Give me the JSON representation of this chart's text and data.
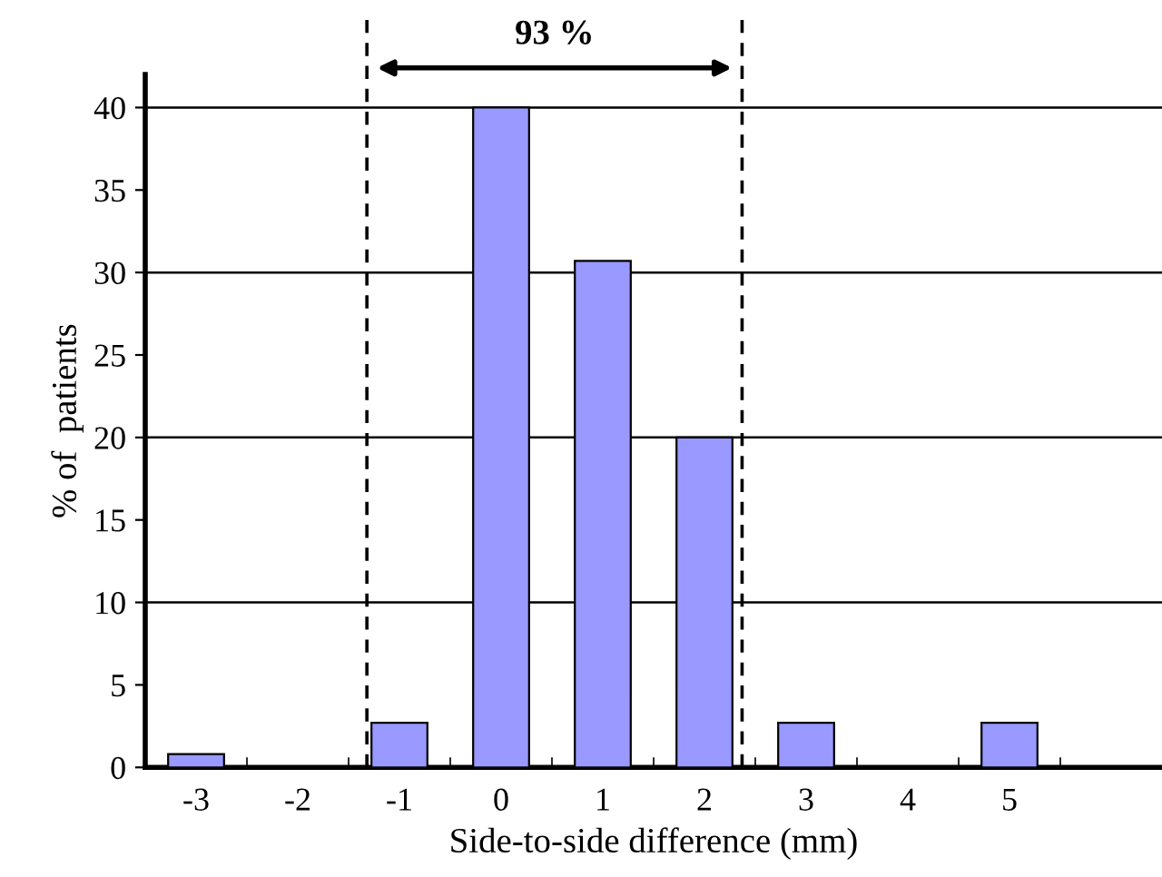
{
  "chart_data": {
    "type": "bar",
    "xlabel": "Side-to-side difference (mm)",
    "ylabel": "% of  patients",
    "x": [
      -3,
      -2,
      -1,
      0,
      1,
      2,
      3,
      4,
      5
    ],
    "values": [
      0.8,
      null,
      2.7,
      40,
      30.7,
      20,
      2.7,
      null,
      2.7
    ],
    "color": "#9999ff",
    "xlim": [
      -3.5,
      6.5
    ],
    "xticks": [
      -3,
      -2,
      -1,
      0,
      1,
      2,
      3,
      4,
      5
    ],
    "ylim": [
      0,
      42
    ],
    "yticks": [
      0,
      5,
      10,
      15,
      20,
      25,
      30,
      35,
      40
    ],
    "grid": false,
    "ref_lines": [
      {
        "axis": "x",
        "value": -1.32,
        "line_style": "dashed",
        "color": "#000000"
      },
      {
        "axis": "x",
        "value": 2.37,
        "line_style": "dashed",
        "color": "#000000"
      },
      {
        "axis": "y",
        "value": 10,
        "color": "#000000"
      },
      {
        "axis": "y",
        "value": 20,
        "color": "#000000"
      },
      {
        "axis": "y",
        "value": 30,
        "color": "#000000"
      },
      {
        "axis": "y",
        "value": 40,
        "color": "#000000"
      }
    ],
    "annotations": [
      "93 %"
    ]
  }
}
